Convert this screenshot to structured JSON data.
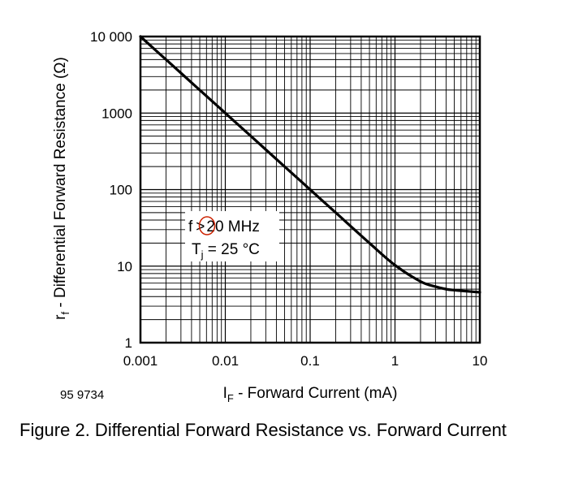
{
  "figure": {
    "doc_number": "95 9734",
    "caption": "Figure 2. Differential Forward Resistance vs. Forward Current"
  },
  "chart_data": {
    "type": "line",
    "x_scale": "log",
    "y_scale": "log",
    "xlabel_main": "I",
    "xlabel_sub": "F",
    "xlabel_rest": " - Forward Current (mA)",
    "ylabel_main": "r",
    "ylabel_sub": "f",
    "ylabel_rest": " - Differential Forward Resistance (Ω)",
    "xlim": [
      0.001,
      10
    ],
    "ylim": [
      1,
      10000
    ],
    "x_ticks": [
      {
        "value": 0.001,
        "label": "0.001"
      },
      {
        "value": 0.01,
        "label": "0.01"
      },
      {
        "value": 0.1,
        "label": "0.1"
      },
      {
        "value": 1,
        "label": "1"
      },
      {
        "value": 10,
        "label": "10"
      }
    ],
    "y_ticks": [
      {
        "value": 1,
        "label": "1"
      },
      {
        "value": 10,
        "label": "10"
      },
      {
        "value": 100,
        "label": "100"
      },
      {
        "value": 1000,
        "label": "1000"
      },
      {
        "value": 10000,
        "label": "10 000"
      }
    ],
    "grid": true,
    "series": [
      {
        "color": "#000000",
        "x": [
          0.001,
          0.002,
          0.005,
          0.01,
          0.02,
          0.05,
          0.1,
          0.2,
          0.5,
          1,
          2,
          3,
          4,
          5,
          7,
          10
        ],
        "y": [
          10000,
          5000,
          2000,
          1000,
          500,
          200,
          100,
          50,
          20,
          10.3,
          6.3,
          5.4,
          5.0,
          4.85,
          4.7,
          4.55
        ]
      }
    ],
    "annotation": {
      "line1_prefix": "f",
      "line1_symbol": ">",
      "line1_suffix": "20 MHz",
      "line2_main": "T",
      "line2_sub": "j",
      "line2_rest": " = 25 °C",
      "highlight_color": "#cc2200"
    }
  }
}
